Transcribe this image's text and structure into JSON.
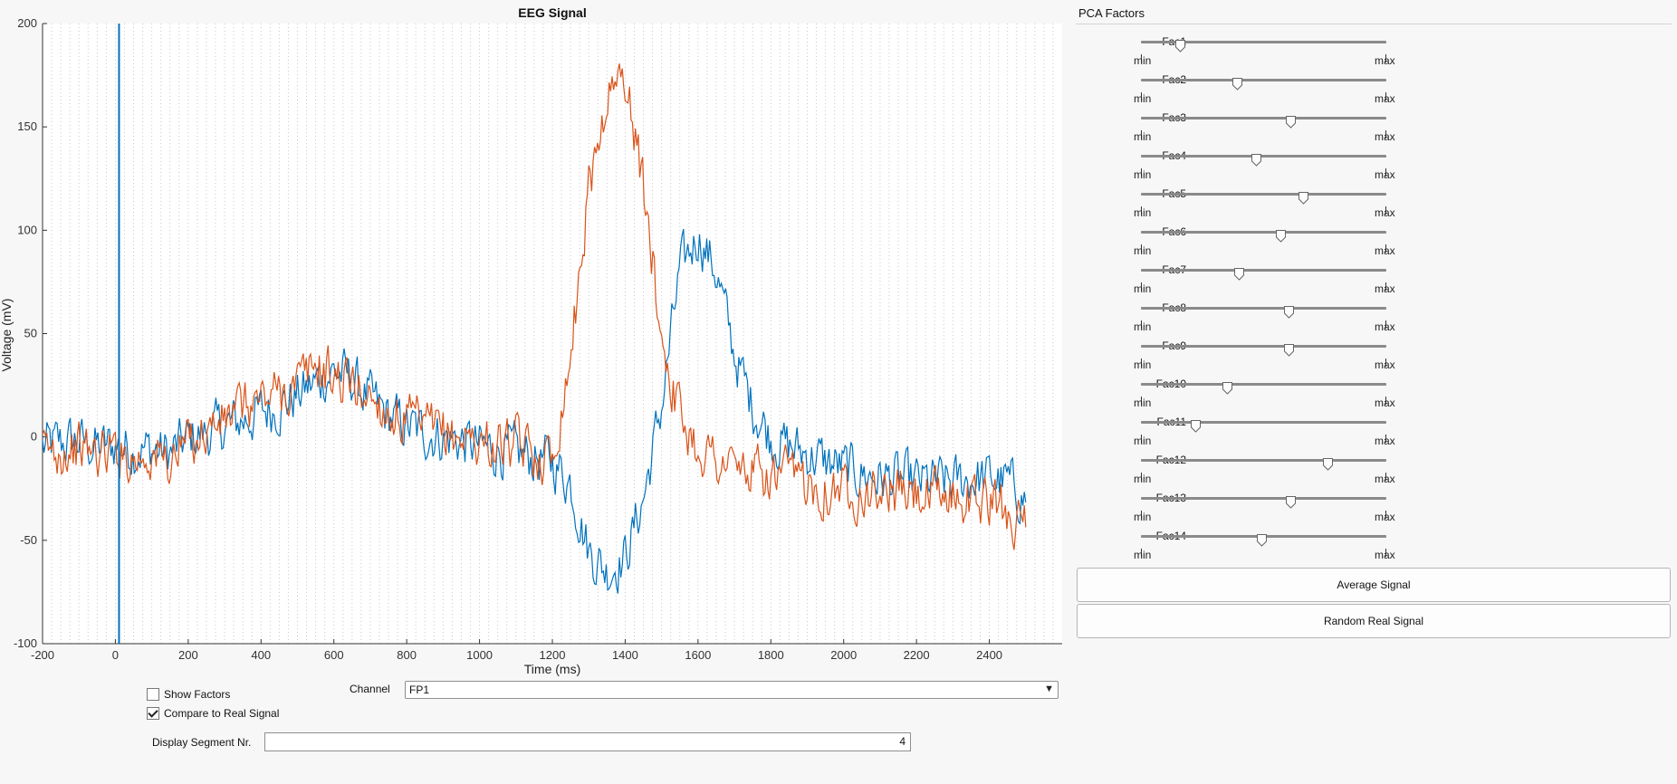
{
  "chart_data": {
    "type": "line",
    "title": "EEG Signal",
    "xlabel": "Time (ms)",
    "ylabel": "Voltage (mV)",
    "xlim": [
      -200,
      2600
    ],
    "ylim": [
      -100,
      200
    ],
    "xticks": [
      -200,
      0,
      200,
      400,
      600,
      800,
      1000,
      1200,
      1400,
      1600,
      1800,
      2000,
      2200,
      2400
    ],
    "yticks": [
      -100,
      -50,
      0,
      50,
      100,
      150,
      200
    ],
    "grid": "vertical-dotted",
    "cursor_x": 10,
    "series": [
      {
        "color": "#0072BD",
        "x": [
          -200,
          -150,
          -100,
          -50,
          0,
          50,
          100,
          150,
          200,
          250,
          300,
          350,
          400,
          450,
          500,
          550,
          600,
          650,
          700,
          750,
          800,
          850,
          900,
          950,
          1000,
          1050,
          1100,
          1150,
          1200,
          1250,
          1300,
          1350,
          1400,
          1450,
          1500,
          1550,
          1600,
          1650,
          1700,
          1750,
          1800,
          1850,
          1900,
          1950,
          2000,
          2050,
          2100,
          2150,
          2200,
          2250,
          2300,
          2350,
          2400,
          2450,
          2500
        ],
        "values": [
          -5,
          -3,
          -2,
          -5,
          -4,
          -6,
          -6,
          -8,
          -1,
          2,
          5,
          8,
          12,
          15,
          20,
          26,
          32,
          28,
          18,
          10,
          5,
          2,
          0,
          -2,
          -5,
          -6,
          -8,
          -10,
          -12,
          -22,
          -55,
          -65,
          -58,
          -30,
          15,
          80,
          98,
          80,
          40,
          15,
          0,
          -5,
          -8,
          -12,
          -15,
          -18,
          -20,
          -20,
          -22,
          -22,
          -22,
          -20,
          -20,
          -22,
          -30
        ]
      },
      {
        "color": "#D95319",
        "x": [
          -200,
          -150,
          -100,
          -50,
          0,
          50,
          100,
          150,
          200,
          250,
          300,
          350,
          400,
          450,
          500,
          550,
          600,
          650,
          700,
          750,
          800,
          850,
          900,
          950,
          1000,
          1050,
          1100,
          1150,
          1200,
          1250,
          1300,
          1350,
          1400,
          1450,
          1500,
          1550,
          1600,
          1650,
          1700,
          1750,
          1800,
          1850,
          1900,
          1950,
          2000,
          2050,
          2100,
          2150,
          2200,
          2250,
          2300,
          2350,
          2400,
          2450,
          2500
        ],
        "values": [
          -8,
          -6,
          -5,
          -8,
          -6,
          -10,
          -8,
          -12,
          -2,
          4,
          8,
          14,
          18,
          22,
          25,
          35,
          30,
          25,
          20,
          12,
          8,
          4,
          2,
          0,
          -2,
          -4,
          -5,
          -8,
          -10,
          40,
          120,
          165,
          175,
          120,
          50,
          10,
          -5,
          -10,
          -15,
          -18,
          -20,
          -20,
          -22,
          -24,
          -25,
          -25,
          -26,
          -27,
          -28,
          -30,
          -28,
          -30,
          -32,
          -35,
          -45
        ]
      }
    ]
  },
  "panel": {
    "title": "PCA Factors",
    "min_label": "min",
    "max_label": "max",
    "sliders": [
      {
        "label": "Fac1",
        "value": 0.16
      },
      {
        "label": "Fac2",
        "value": 0.39
      },
      {
        "label": "Fac3",
        "value": 0.61
      },
      {
        "label": "Fac4",
        "value": 0.47
      },
      {
        "label": "Fac5",
        "value": 0.66
      },
      {
        "label": "Fac6",
        "value": 0.57
      },
      {
        "label": "Fac7",
        "value": 0.4
      },
      {
        "label": "Fac8",
        "value": 0.6
      },
      {
        "label": "Fac9",
        "value": 0.6
      },
      {
        "label": "Fac10",
        "value": 0.35
      },
      {
        "label": "Fac11",
        "value": 0.22
      },
      {
        "label": "Fac12",
        "value": 0.76
      },
      {
        "label": "Fac13",
        "value": 0.61
      },
      {
        "label": "Fac14",
        "value": 0.49
      }
    ]
  },
  "buttons": {
    "average": "Average Signal",
    "random": "Random Real Signal"
  },
  "controls": {
    "show_factors_label": "Show Factors",
    "show_factors_checked": false,
    "compare_label": "Compare to Real Signal",
    "compare_checked": true,
    "channel_label": "Channel",
    "channel_value": "FP1",
    "segment_label": "Display Segment Nr.",
    "segment_value": "4"
  }
}
